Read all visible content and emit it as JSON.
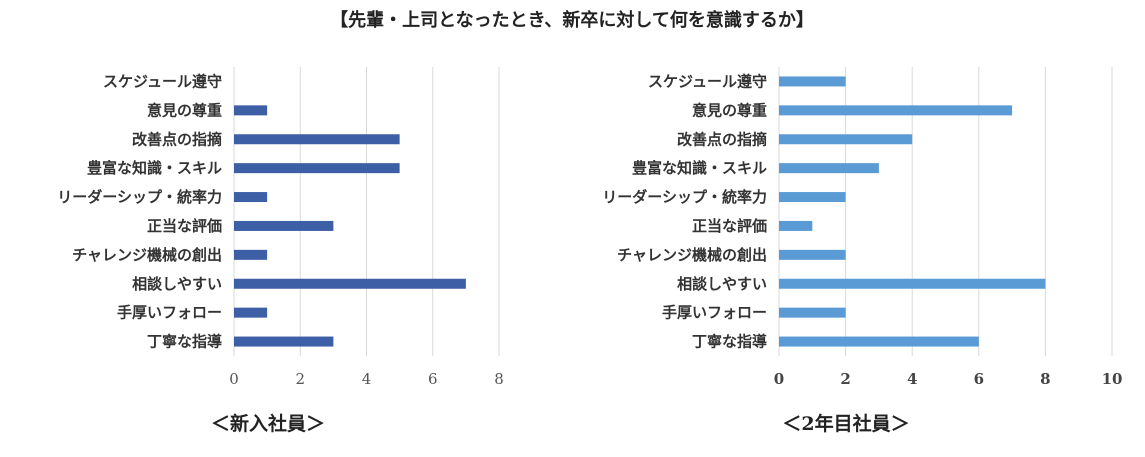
{
  "title": "【先輩・上司となったとき、新卒に対して何を意識するか】",
  "chart_data": [
    {
      "type": "bar",
      "orientation": "horizontal",
      "caption": "＜新入社員＞",
      "color": "#3c5fa6",
      "categories": [
        "スケジュール遵守",
        "意見の尊重",
        "改善点の指摘",
        "豊富な知識・スキル",
        "リーダーシップ・統率力",
        "正当な評価",
        "チャレンジ機械の創出",
        "相談しやすい",
        "手厚いフォロー",
        "丁寧な指導"
      ],
      "values": [
        0,
        1,
        5,
        5,
        1,
        3,
        1,
        7,
        1,
        3
      ],
      "xlim": [
        0,
        8
      ],
      "ticks": [
        "0",
        "2",
        "4",
        "6",
        "8"
      ],
      "grid": true
    },
    {
      "type": "bar",
      "orientation": "horizontal",
      "caption": "＜2年目社員＞",
      "color": "#5b9bd5",
      "categories": [
        "スケジュール遵守",
        "意見の尊重",
        "改善点の指摘",
        "豊富な知識・スキル",
        "リーダーシップ・統率力",
        "正当な評価",
        "チャレンジ機械の創出",
        "相談しやすい",
        "手厚いフォロー",
        "丁寧な指導"
      ],
      "values": [
        2,
        7,
        4,
        3,
        2,
        1,
        2,
        8,
        2,
        6
      ],
      "xlim": [
        0,
        10
      ],
      "ticks": [
        "0",
        "2",
        "4",
        "6",
        "8",
        "10"
      ],
      "grid": true
    }
  ]
}
